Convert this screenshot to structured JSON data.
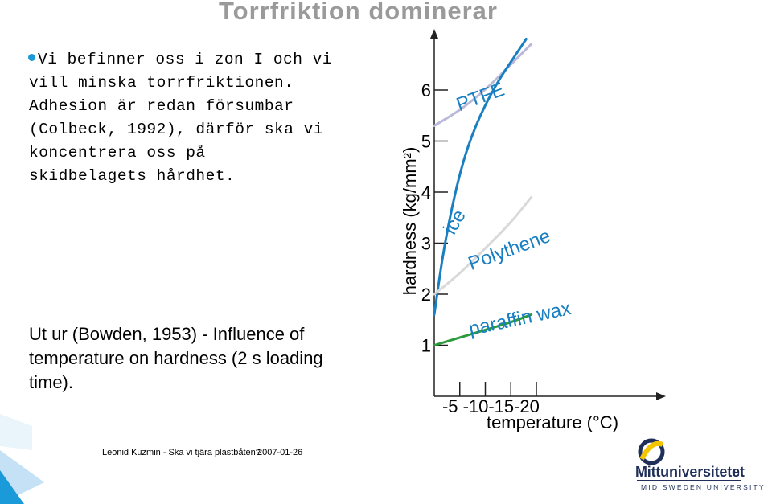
{
  "slide": {
    "title": "Torrfriktion dominerar",
    "bullet_lines": [
      "Vi befinner oss i zon I och vi",
      "vill minska torrfriktionen.",
      "Adhesion är redan försumbar",
      "(Colbeck, 1992), därför ska vi",
      "koncentrera oss på",
      "skidbelagets hårdhet."
    ],
    "source_lines": [
      "Ut ur (Bowden, 1953) - Influence of",
      "temperature on hardness (2 s loading",
      "time)."
    ],
    "footer_author": "Leonid Kuzmin - Ska vi tjära plastbåten?",
    "footer_date": "2007-01-26",
    "logo_name": "Mittuniversitetet",
    "logo_sub": "MID SWEDEN UNIVERSITY",
    "page_number": "8",
    "colors": {
      "accent": "#1a9ad9",
      "title_gray": "#9a9a9a",
      "logo_navy": "#1f2f5a",
      "logo_yellow": "#f2c500"
    }
  },
  "chart_data": {
    "type": "line",
    "xlabel": "temperature (°C)",
    "ylabel": "hardness (kg/mm²)",
    "xlim": [
      0,
      -20
    ],
    "ylim": [
      0,
      7
    ],
    "x_ticks": [
      -5,
      -10,
      -15,
      -20
    ],
    "x_tick_labels": [
      "-5",
      "-10",
      "-15",
      "-20"
    ],
    "y_ticks": [
      1,
      2,
      3,
      4,
      5,
      6
    ],
    "y_tick_labels": [
      "1",
      "2",
      "3",
      "4",
      "5",
      "6"
    ],
    "series": [
      {
        "name": "PTFE",
        "color": "#b9b9d9",
        "x": [
          0,
          -5,
          -10,
          -15,
          -19
        ],
        "y": [
          5.3,
          5.6,
          6.0,
          6.5,
          6.9
        ]
      },
      {
        "name": "ice",
        "color": "#1a7fc1",
        "x": [
          0,
          -2,
          -5,
          -8,
          -12,
          -16,
          -18
        ],
        "y": [
          1.6,
          3.0,
          4.4,
          5.3,
          6.1,
          6.7,
          7.0
        ]
      },
      {
        "name": "Polythene",
        "color": "#d9d9d9",
        "x": [
          0,
          -5,
          -10,
          -15,
          -19
        ],
        "y": [
          2.0,
          2.4,
          2.9,
          3.4,
          3.9
        ]
      },
      {
        "name": "paraffin wax",
        "color": "#2a9a3a",
        "x": [
          0,
          -5,
          -10,
          -15,
          -19
        ],
        "y": [
          1.0,
          1.15,
          1.3,
          1.45,
          1.6
        ]
      }
    ]
  }
}
